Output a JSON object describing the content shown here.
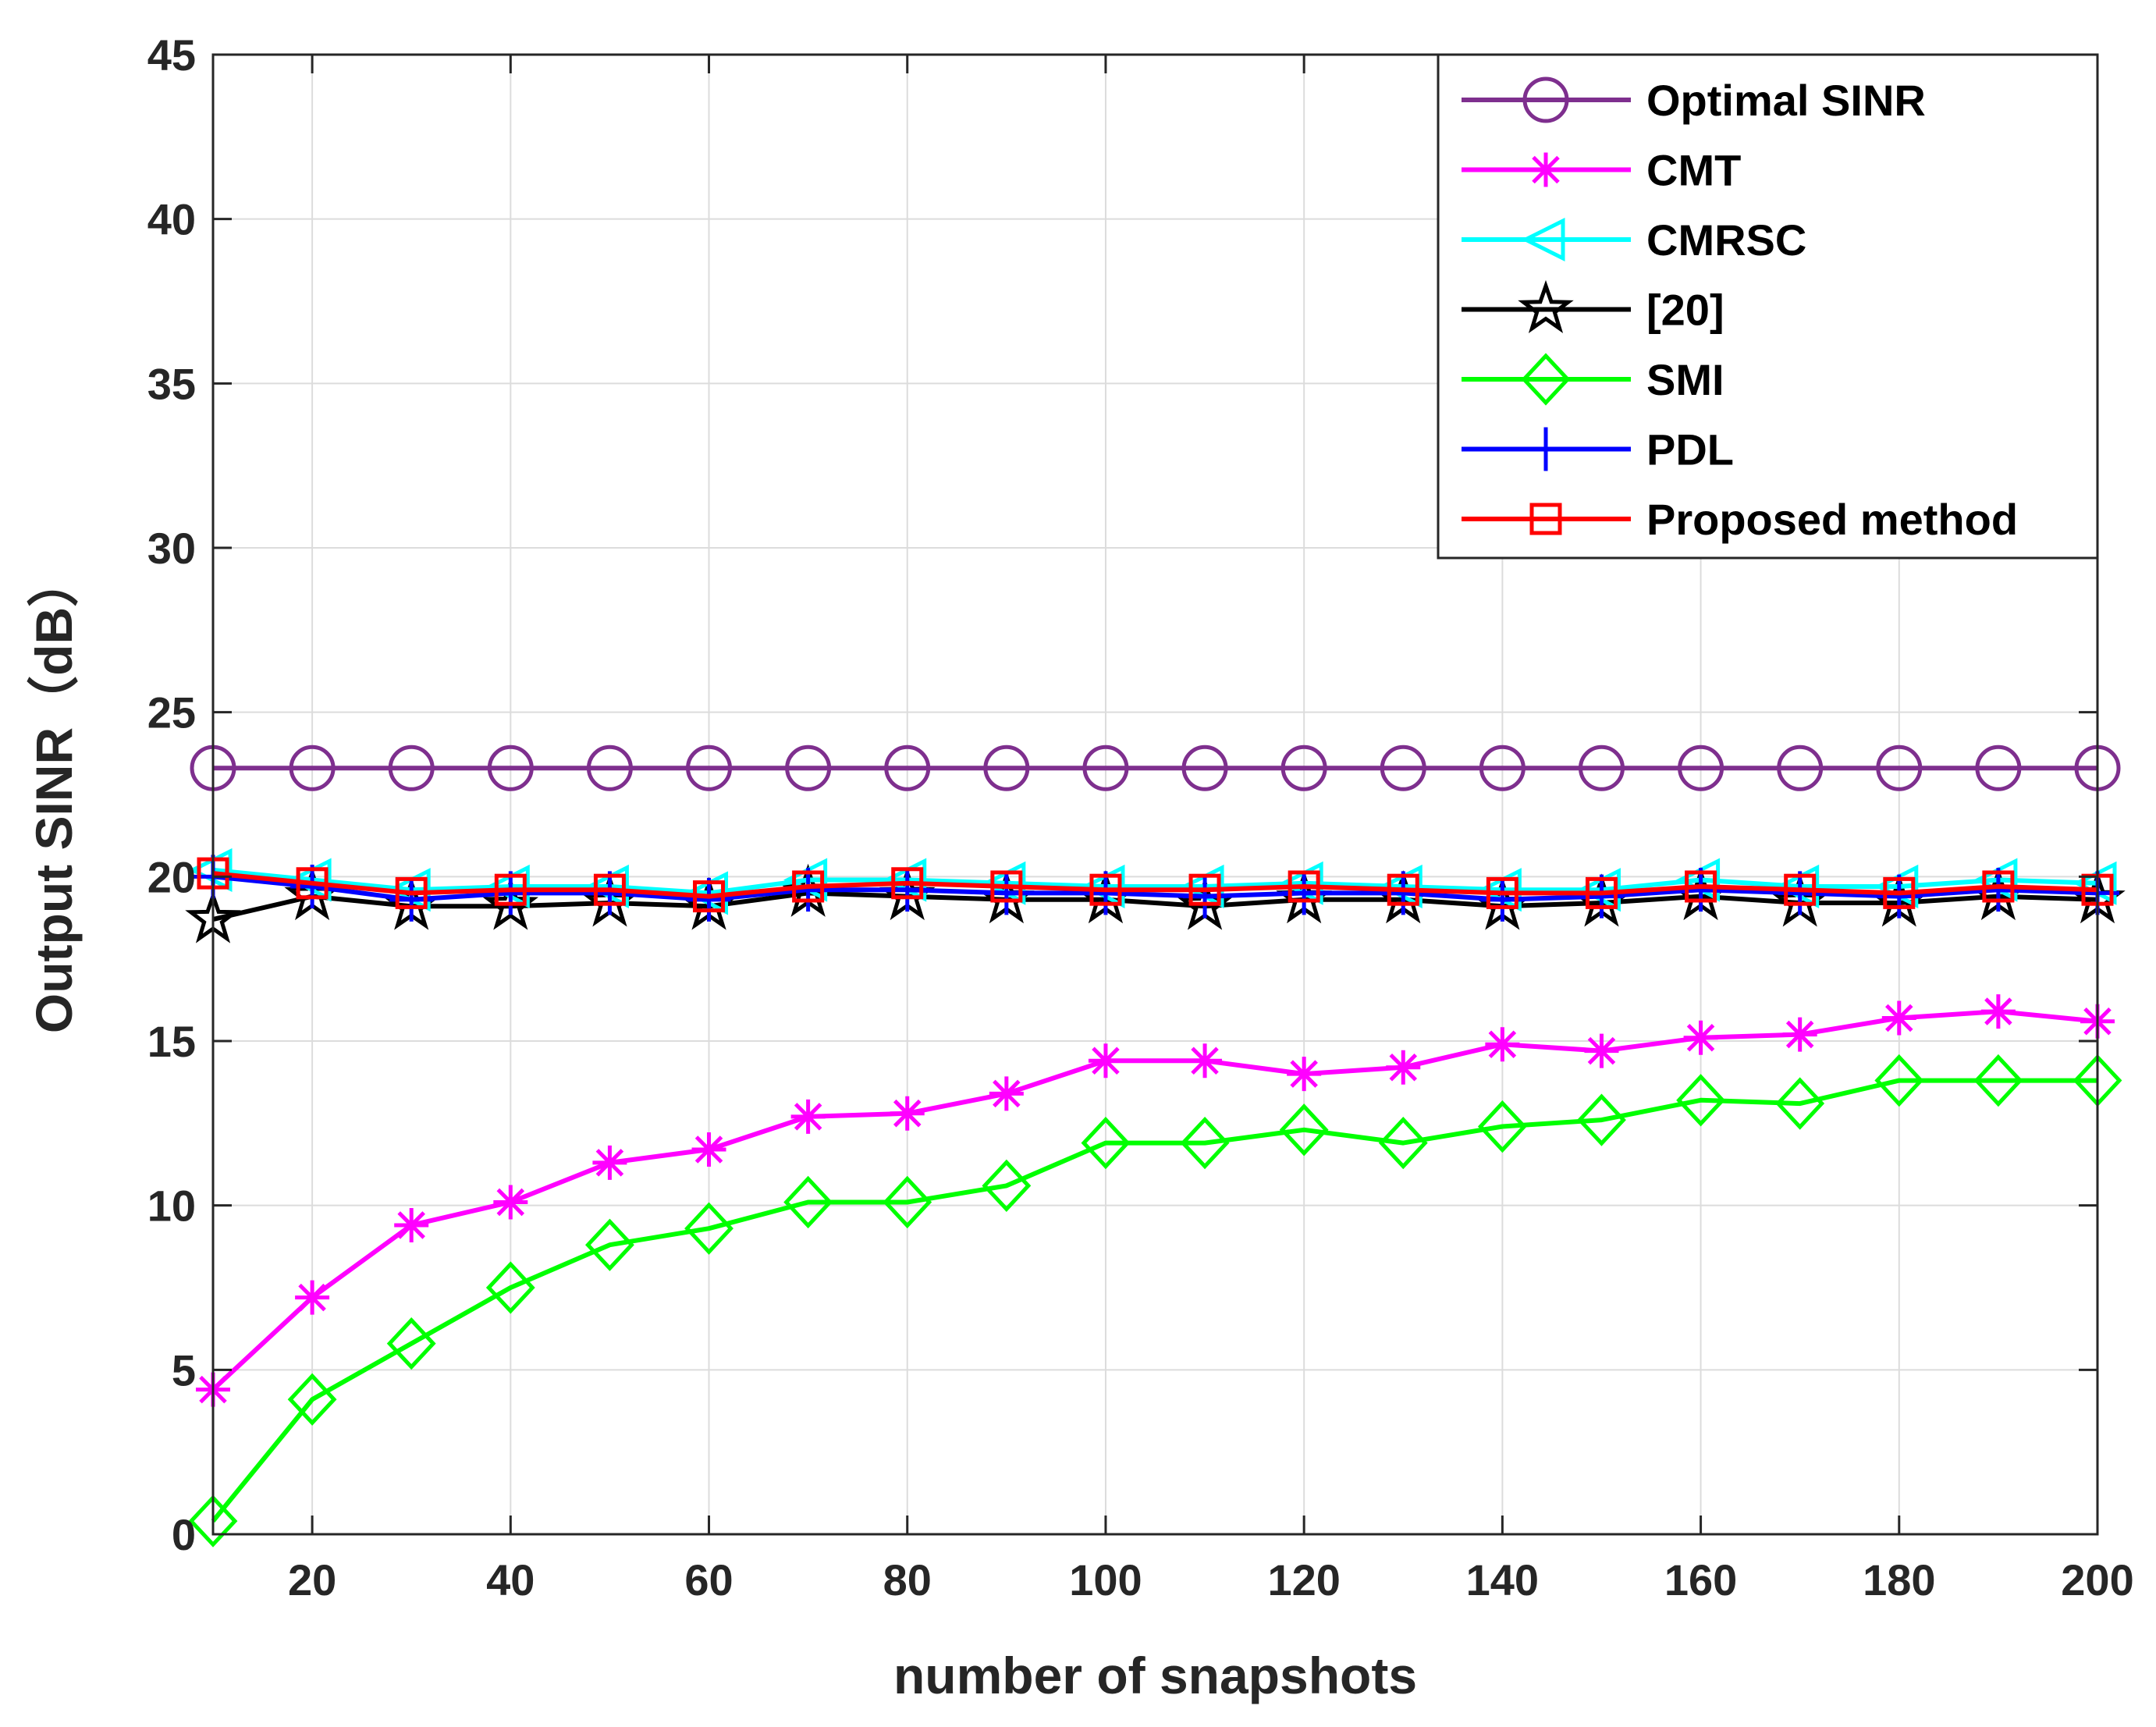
{
  "chart_data": {
    "type": "line",
    "xlabel": "number of snapshots",
    "ylabel": "Output SINR（dB）",
    "xlim": [
      10,
      200
    ],
    "ylim": [
      0,
      45
    ],
    "xticks": [
      20,
      40,
      60,
      80,
      100,
      120,
      140,
      160,
      180,
      200
    ],
    "yticks": [
      0,
      5,
      10,
      15,
      20,
      25,
      30,
      35,
      40,
      45
    ],
    "grid": true,
    "legend_position": "top-right",
    "x": [
      10,
      20,
      30,
      40,
      50,
      60,
      70,
      80,
      90,
      100,
      110,
      120,
      130,
      140,
      150,
      160,
      170,
      180,
      190,
      200
    ],
    "series": [
      {
        "name": "Optimal SINR",
        "color": "#7E2F8E",
        "marker": "circle",
        "values": [
          23.3,
          23.3,
          23.3,
          23.3,
          23.3,
          23.3,
          23.3,
          23.3,
          23.3,
          23.3,
          23.3,
          23.3,
          23.3,
          23.3,
          23.3,
          23.3,
          23.3,
          23.3,
          23.3,
          23.3
        ]
      },
      {
        "name": "CMT",
        "color": "#FF00FF",
        "marker": "asterisk",
        "values": [
          4.4,
          7.2,
          9.4,
          10.1,
          11.3,
          11.7,
          12.7,
          12.8,
          13.4,
          14.4,
          14.4,
          14.0,
          14.2,
          14.9,
          14.7,
          15.1,
          15.2,
          15.7,
          15.9,
          15.6
        ]
      },
      {
        "name": "CMRSC",
        "color": "#00FFFF",
        "marker": "triangle-left",
        "values": [
          20.2,
          19.9,
          19.6,
          19.7,
          19.7,
          19.5,
          19.9,
          19.9,
          19.8,
          19.7,
          19.7,
          19.8,
          19.7,
          19.6,
          19.6,
          19.9,
          19.7,
          19.7,
          19.9,
          19.8
        ]
      },
      {
        "name": "[20]",
        "color": "#000000",
        "marker": "star",
        "values": [
          18.7,
          19.4,
          19.1,
          19.1,
          19.2,
          19.1,
          19.5,
          19.4,
          19.3,
          19.3,
          19.1,
          19.3,
          19.3,
          19.1,
          19.2,
          19.4,
          19.2,
          19.2,
          19.4,
          19.3
        ]
      },
      {
        "name": "SMI",
        "color": "#00FF00",
        "marker": "diamond",
        "values": [
          0.4,
          4.1,
          5.8,
          7.5,
          8.8,
          9.3,
          10.1,
          10.1,
          10.6,
          11.9,
          11.9,
          12.3,
          11.9,
          12.4,
          12.6,
          13.2,
          13.1,
          13.8,
          13.8,
          13.8
        ]
      },
      {
        "name": "PDL",
        "color": "#0000FF",
        "marker": "plus",
        "values": [
          20.0,
          19.7,
          19.3,
          19.5,
          19.5,
          19.3,
          19.6,
          19.6,
          19.5,
          19.5,
          19.4,
          19.5,
          19.5,
          19.3,
          19.4,
          19.6,
          19.5,
          19.4,
          19.6,
          19.5
        ]
      },
      {
        "name": "Proposed method",
        "color": "#FF0000",
        "marker": "square",
        "values": [
          20.1,
          19.8,
          19.5,
          19.6,
          19.6,
          19.4,
          19.7,
          19.8,
          19.7,
          19.6,
          19.6,
          19.7,
          19.6,
          19.5,
          19.5,
          19.7,
          19.6,
          19.5,
          19.7,
          19.6
        ]
      }
    ]
  }
}
